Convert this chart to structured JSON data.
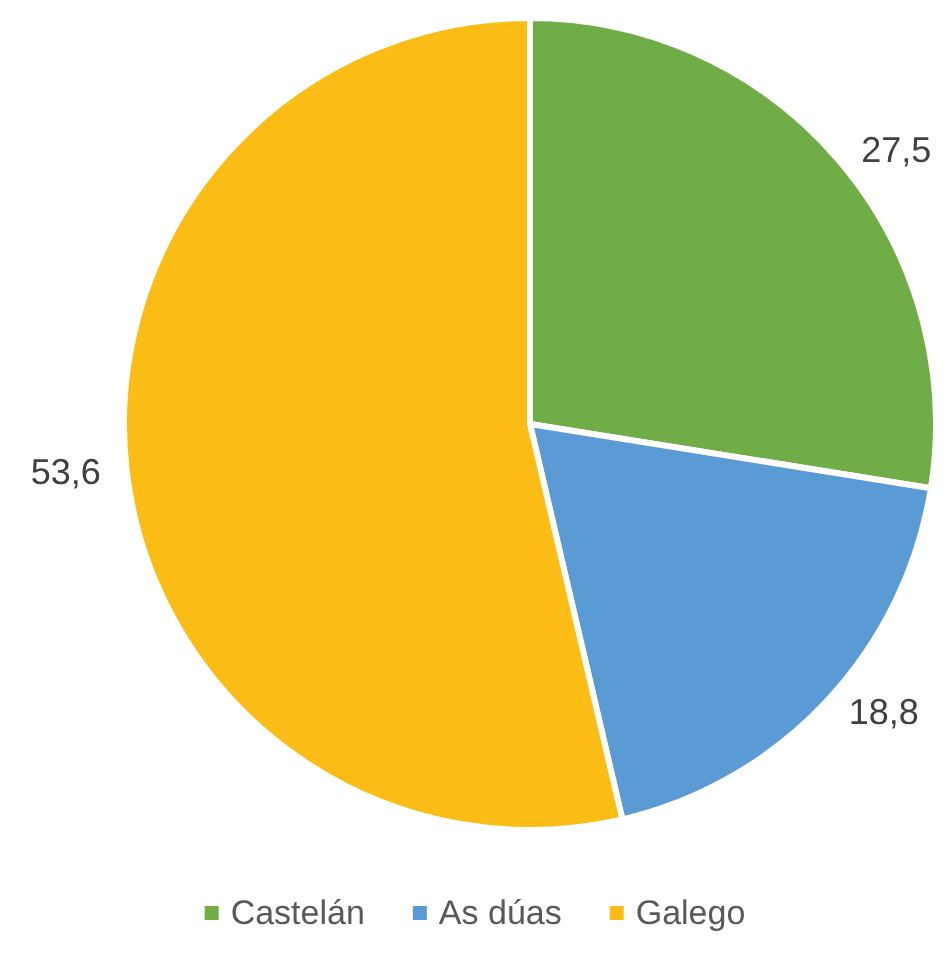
{
  "chart_data": {
    "type": "pie",
    "categories": [
      "Castelán",
      "As dúas",
      "Galego"
    ],
    "values": [
      27.5,
      18.8,
      53.6
    ],
    "colors": [
      "#70ad47",
      "#5b9bd5",
      "#fbbc15"
    ],
    "value_labels": [
      "27,5",
      "18,8",
      "53,6"
    ],
    "legend": "bottom"
  }
}
